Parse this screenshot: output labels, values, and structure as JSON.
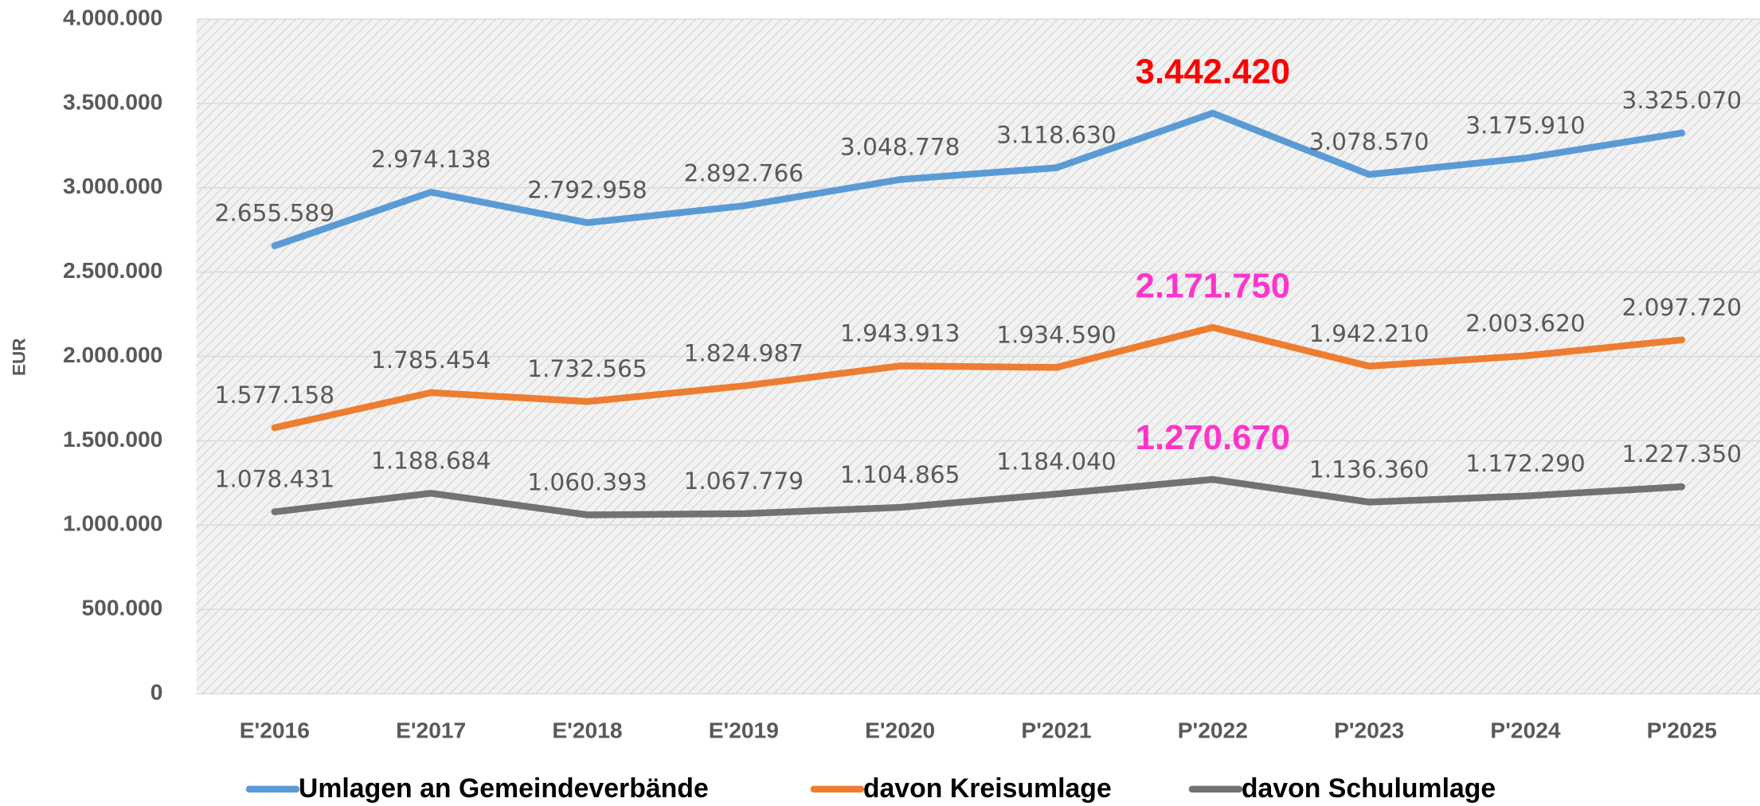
{
  "chart_data": {
    "type": "line",
    "y_label": "EUR",
    "categories": [
      "E'2016",
      "E'2017",
      "E'2018",
      "E'2019",
      "E'2020",
      "P'2021",
      "P'2022",
      "P'2023",
      "P'2024",
      "P'2025"
    ],
    "ylim": [
      0,
      4000000
    ],
    "yticks": [
      0,
      {
        "value": 500000,
        "label": "500.000"
      },
      {
        "value": 1000000,
        "label": "1.000.000"
      },
      {
        "value": 1500000,
        "label": "1.500.000"
      },
      {
        "value": 2000000,
        "label": "2.000.000"
      },
      {
        "value": 2500000,
        "label": "2.500.000"
      },
      {
        "value": 3000000,
        "label": "3.000.000"
      },
      {
        "value": 3500000,
        "label": "3.500.000"
      },
      {
        "value": 4000000,
        "label": "4.000.000"
      }
    ],
    "grid": true,
    "legend": "bottom",
    "series": [
      {
        "name": "Umlagen an Gemeindeverbände",
        "color": "#5b9bd5",
        "highlight_index": 6,
        "highlight_color": "#ff0000",
        "values": [
          2655589,
          2974138,
          2792958,
          2892766,
          3048778,
          3118630,
          3442420,
          3078570,
          3175910,
          3325070
        ],
        "value_labels": [
          "2.655.589",
          "2.974.138",
          "2.792.958",
          "2.892.766",
          "3.048.778",
          "3.118.630",
          "3.442.420",
          "3.078.570",
          "3.175.910",
          "3.325.070"
        ]
      },
      {
        "name": "davon Kreisumlage",
        "color": "#ed7d31",
        "highlight_index": 6,
        "highlight_color": "#ff33cc",
        "values": [
          1577158,
          1785454,
          1732565,
          1824987,
          1943913,
          1934590,
          2171750,
          1942210,
          2003620,
          2097720
        ],
        "value_labels": [
          "1.577.158",
          "1.785.454",
          "1.732.565",
          "1.824.987",
          "1.943.913",
          "1.934.590",
          "2.171.750",
          "1.942.210",
          "2.003.620",
          "2.097.720"
        ]
      },
      {
        "name": "davon Schulumlage",
        "color": "#767171",
        "highlight_index": 6,
        "highlight_color": "#ff33cc",
        "values": [
          1078431,
          1188684,
          1060393,
          1067779,
          1104865,
          1184040,
          1270670,
          1136360,
          1172290,
          1227350
        ],
        "value_labels": [
          "1.078.431",
          "1.188.684",
          "1.060.393",
          "1.067.779",
          "1.104.865",
          "1.184.040",
          "1.270.670",
          "1.136.360",
          "1.172.290",
          "1.227.350"
        ]
      }
    ]
  }
}
